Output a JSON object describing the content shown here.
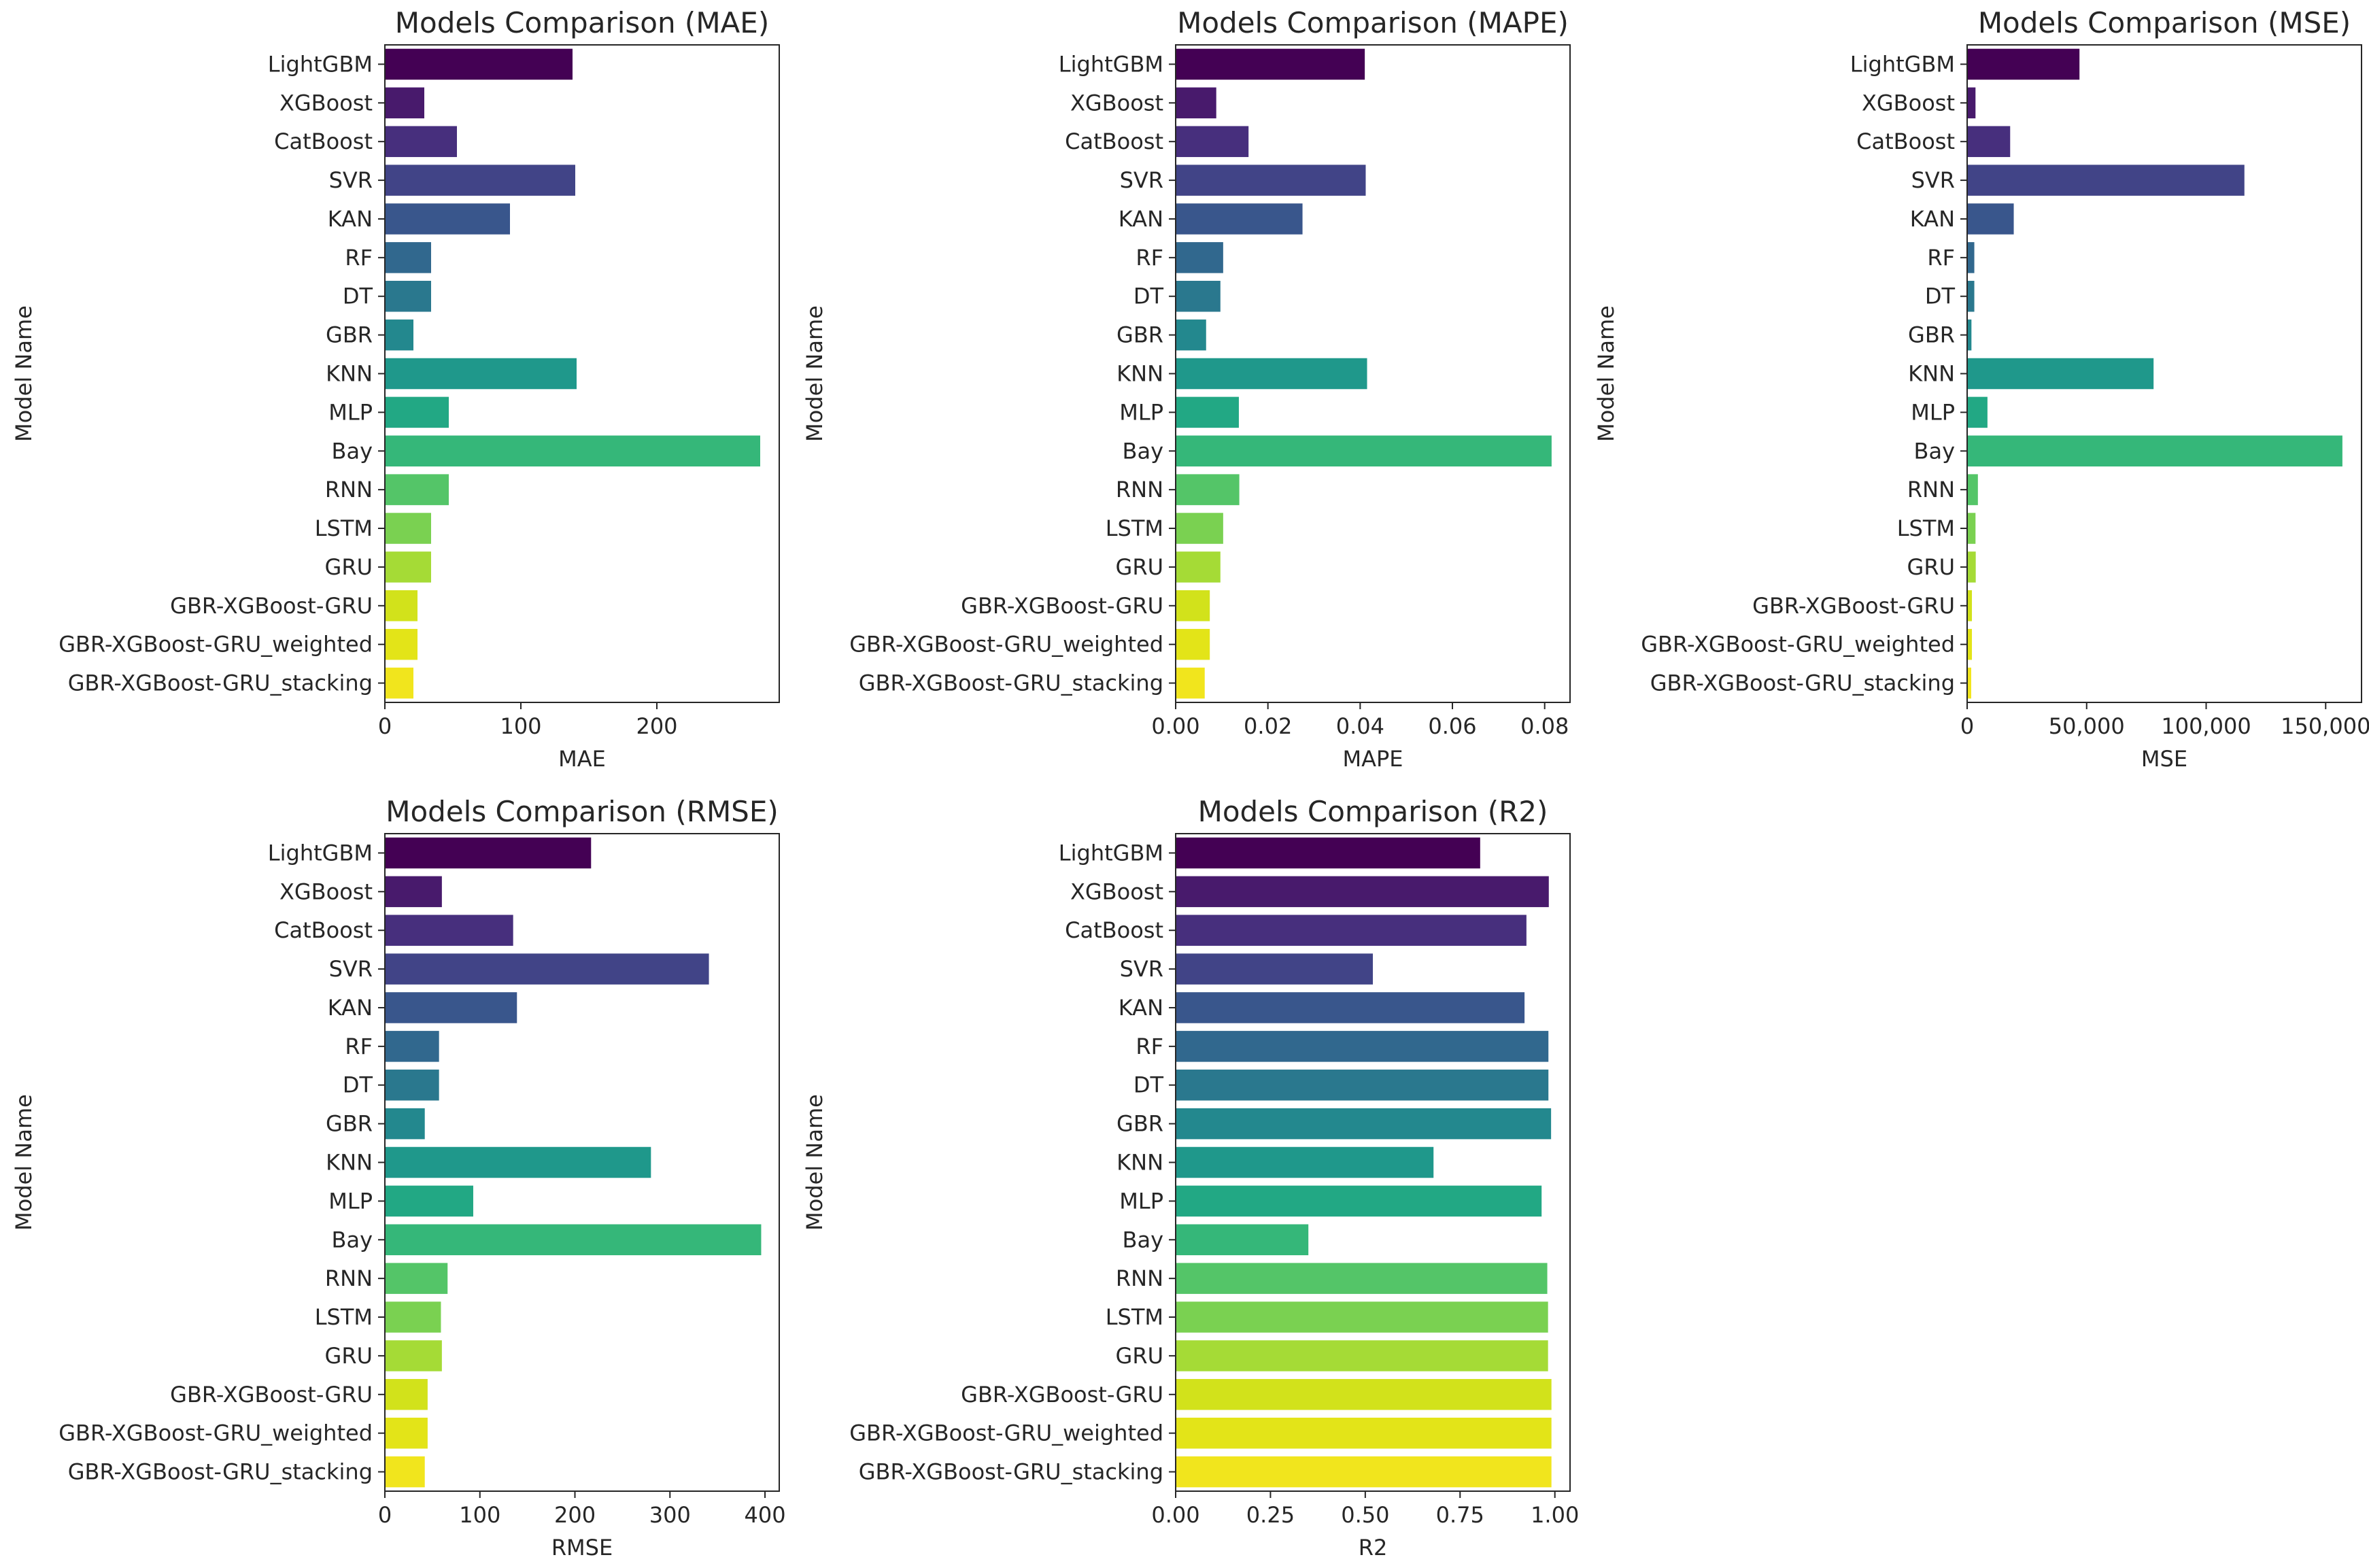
{
  "models": [
    "LightGBM",
    "XGBoost",
    "CatBoost",
    "SVR",
    "KAN",
    "RF",
    "DT",
    "GBR",
    "KNN",
    "MLP",
    "Bay",
    "RNN",
    "LSTM",
    "GRU",
    "GBR-XGBoost-GRU",
    "GBR-XGBoost-GRU_weighted",
    "GBR-XGBoost-GRU_stacking"
  ],
  "palette": [
    "#440154",
    "#481a6c",
    "#472f7d",
    "#414487",
    "#39568c",
    "#31688e",
    "#2a788e",
    "#23888e",
    "#1f988b",
    "#22a884",
    "#35b779",
    "#54c568",
    "#7ad151",
    "#a5db36",
    "#d2e21b",
    "#e3e418",
    "#f1e51d"
  ],
  "chart_data": [
    {
      "type": "bar",
      "orientation": "horizontal",
      "title": "Models Comparison (MAE)",
      "xlabel": "MAE",
      "ylabel": "Model Name",
      "xlim": [
        0,
        290
      ],
      "xticks": [
        0,
        100,
        200
      ],
      "xtick_labels": [
        "0",
        "100",
        "200"
      ],
      "values": [
        138,
        29,
        53,
        140,
        92,
        34,
        34,
        21,
        141,
        47,
        276,
        47,
        34,
        34,
        24,
        24,
        21
      ]
    },
    {
      "type": "bar",
      "orientation": "horizontal",
      "title": "Models Comparison (MAPE)",
      "xlabel": "MAPE",
      "ylabel": "Model Name",
      "xlim": [
        0,
        0.0855
      ],
      "xticks": [
        0,
        0.02,
        0.04,
        0.06,
        0.08
      ],
      "xtick_labels": [
        "0.00",
        "0.02",
        "0.04",
        "0.06",
        "0.08"
      ],
      "values": [
        0.041,
        0.0088,
        0.0158,
        0.0412,
        0.0275,
        0.0103,
        0.0097,
        0.0066,
        0.0415,
        0.0137,
        0.0815,
        0.0138,
        0.0103,
        0.0097,
        0.0074,
        0.0074,
        0.0063
      ]
    },
    {
      "type": "bar",
      "orientation": "horizontal",
      "title": "Models Comparison (MSE)",
      "xlabel": "MSE",
      "ylabel": "Model Name",
      "xlim": [
        0,
        165000
      ],
      "xticks": [
        0,
        50000,
        100000,
        150000
      ],
      "xtick_labels": [
        "0",
        "50,000",
        "100,000",
        "150,000"
      ],
      "values": [
        47000,
        3500,
        18000,
        116000,
        19500,
        3000,
        3000,
        1800,
        78000,
        8500,
        157000,
        4500,
        3500,
        3600,
        2000,
        2000,
        1700
      ]
    },
    {
      "type": "bar",
      "orientation": "horizontal",
      "title": "Models Comparison (RMSE)",
      "xlabel": "RMSE",
      "ylabel": "Model Name",
      "xlim": [
        0,
        415
      ],
      "xticks": [
        0,
        100,
        200,
        300,
        400
      ],
      "xtick_labels": [
        "0",
        "100",
        "200",
        "300",
        "400"
      ],
      "values": [
        217,
        60,
        135,
        341,
        139,
        57,
        57,
        42,
        280,
        93,
        396,
        66,
        59,
        60,
        45,
        45,
        42
      ]
    },
    {
      "type": "bar",
      "orientation": "horizontal",
      "title": "Models Comparison (R2)",
      "xlabel": "R2",
      "ylabel": "Model Name",
      "xlim": [
        0,
        1.04
      ],
      "xticks": [
        0,
        0.25,
        0.5,
        0.75,
        1.0
      ],
      "xtick_labels": [
        "0.00",
        "0.25",
        "0.50",
        "0.75",
        "1.00"
      ],
      "values": [
        0.803,
        0.984,
        0.925,
        0.52,
        0.92,
        0.983,
        0.983,
        0.99,
        0.68,
        0.965,
        0.35,
        0.98,
        0.982,
        0.982,
        0.991,
        0.991,
        0.991
      ]
    }
  ]
}
